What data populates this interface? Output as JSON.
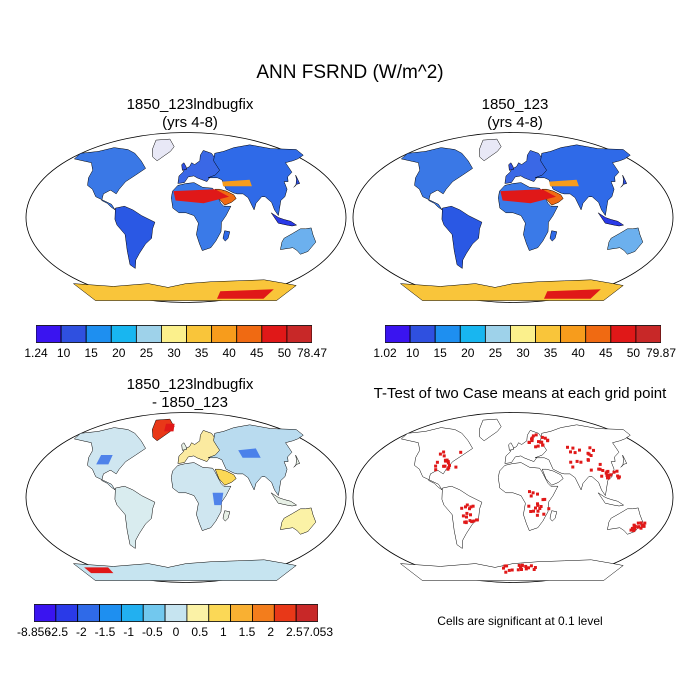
{
  "title": "ANN FSRND (W/m^2)",
  "panels": [
    {
      "line1": "1850_123lndbugfix",
      "line2": "(yrs 4-8)"
    },
    {
      "line1": "1850_123",
      "line2": "(yrs 4-8)"
    },
    {
      "line1": "1850_123lndbugfix",
      "line2": "- 1850_123"
    },
    {
      "line1": "T-Test of two Case means at each grid point",
      "line2": ""
    }
  ],
  "colorbars": [
    {
      "labels": [
        "1.24",
        "10",
        "15",
        "20",
        "25",
        "30",
        "35",
        "40",
        "45",
        "50",
        "78.47"
      ],
      "colors": [
        "#3a14f0",
        "#2f50e0",
        "#1e8ff0",
        "#18b6f0",
        "#9ed2ea",
        "#fbf08c",
        "#f9c53a",
        "#f79c1c",
        "#f06a12",
        "#e01818",
        "#c82828"
      ]
    },
    {
      "labels": [
        "1.02",
        "10",
        "15",
        "20",
        "25",
        "30",
        "35",
        "40",
        "45",
        "50",
        "79.87"
      ],
      "colors": [
        "#3a14f0",
        "#2f50e0",
        "#1e8ff0",
        "#18b6f0",
        "#9ed2ea",
        "#fbf08c",
        "#f9c53a",
        "#f79c1c",
        "#f06a12",
        "#e01818",
        "#c82828"
      ]
    },
    {
      "labels": [
        "-8.856",
        "-2.5",
        "-2",
        "-1.5",
        "-1",
        "-0.5",
        "0",
        "0.5",
        "1",
        "1.5",
        "2",
        "2.5",
        "7.053"
      ],
      "colors": [
        "#3a14f0",
        "#2a3ae8",
        "#2f6ae8",
        "#1e8ff0",
        "#22b0f0",
        "#72c8ee",
        "#c6e4f0",
        "#fbf2a6",
        "#fbd856",
        "#f9b032",
        "#f37d1c",
        "#e83818",
        "#c82828"
      ]
    }
  ],
  "note": "Cells are significant at 0.1 level",
  "legend_ticks": {
    "cb1": [
      0,
      1,
      2,
      3,
      4,
      5,
      6,
      7,
      8,
      9,
      10
    ],
    "cb3": [
      0,
      2,
      3,
      4,
      5,
      6,
      7,
      8,
      9,
      10,
      11,
      13
    ]
  }
}
